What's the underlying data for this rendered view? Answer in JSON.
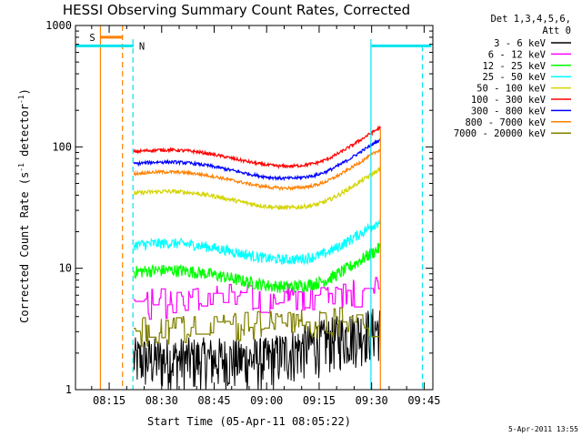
{
  "chart_data": {
    "type": "line",
    "title": "HESSI Observing Summary Count Rates, Corrected",
    "xlabel": "Start Time (05-Apr-11 08:05:22)",
    "ylabel_main": "Corrected Count Rate (s",
    "ylabel_sup1": "-1",
    "ylabel_mid": " detector",
    "ylabel_sup2": "-1",
    "ylabel_end": ")",
    "x_ticks": [
      "08:15",
      "08:30",
      "08:45",
      "09:00",
      "09:15",
      "09:30",
      "09:45"
    ],
    "x_tick_minutes": [
      15,
      30,
      45,
      60,
      75,
      90,
      105
    ],
    "xlim_minutes": [
      5.37,
      107.5
    ],
    "y_scale": "log",
    "ylim": [
      1,
      1000
    ],
    "y_ticks": [
      {
        "label": "1",
        "value": 1
      },
      {
        "label": "10",
        "value": 10
      },
      {
        "label": "100",
        "value": 100
      },
      {
        "label": "1000",
        "value": 1000
      }
    ],
    "data_start_min": 22.0,
    "data_end_min": 92.5,
    "legend_header_1": "Det 1,3,4,5,6,",
    "legend_header_2": "Att 0",
    "series": [
      {
        "name": "3 - 6 keV",
        "color": "#000000",
        "base": 1.5,
        "noise": 0.55,
        "kind": "noisy"
      },
      {
        "name": "6 - 12 keV",
        "color": "#ff00ff",
        "base": 5.5,
        "noise": 0.18,
        "kind": "step"
      },
      {
        "name": "12 - 25 keV",
        "color": "#00ff00",
        "base": 9.0,
        "noise": 0.12,
        "kind": "smooth"
      },
      {
        "name": "25 - 50 keV",
        "color": "#00ffff",
        "base": 15.0,
        "noise": 0.1,
        "kind": "smooth"
      },
      {
        "name": "50 - 100 keV",
        "color": "#d4d400",
        "base": 40.0,
        "noise": 0.04,
        "kind": "smooth"
      },
      {
        "name": "100 - 300 keV",
        "color": "#ff0000",
        "base": 88.0,
        "noise": 0.03,
        "kind": "smooth"
      },
      {
        "name": "300 - 800 keV",
        "color": "#0000ff",
        "base": 70.0,
        "noise": 0.03,
        "kind": "smooth"
      },
      {
        "name": "800 - 7000 keV",
        "color": "#ff8000",
        "base": 58.0,
        "noise": 0.03,
        "kind": "smooth"
      },
      {
        "name": "7000 - 20000 keV",
        "color": "#808000",
        "base": 3.2,
        "noise": 0.35,
        "kind": "step"
      }
    ],
    "annotations": {
      "saa_label": "S",
      "night_label": "N",
      "orange_solid_min": 12.5,
      "orange_dashed_min": 18.8,
      "saa_bar_from_min": 12.5,
      "saa_bar_to_min": 18.8,
      "saa_bar_value": 800,
      "cyan_left_min": 21.8,
      "cyan_left_dashed_min": 23.0,
      "night_bar_left_from_min": 5.37,
      "night_bar_left_to_min": 22.0,
      "night_bar_right_from_min": 90.0,
      "night_bar_right_to_min": 107.0,
      "night_bar_value": 680,
      "cyan_right_solid_min": 89.8,
      "cyan_right_dashed_min": 104.5,
      "orange_right_solid_min": 92.5
    },
    "grid": false,
    "legend_position": "right"
  },
  "timestamp": "5-Apr-2011 13:55",
  "colors": {
    "background": "#ffffff",
    "axis": "#000000",
    "night": "#00e5ee",
    "saa": "#ff8000"
  }
}
